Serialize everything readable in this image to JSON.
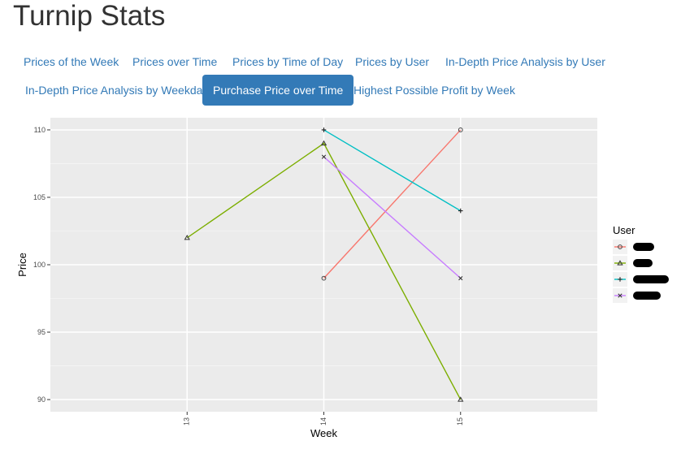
{
  "page": {
    "title": "Turnip Stats"
  },
  "tabs": [
    {
      "label": "Prices of the Week",
      "active": false
    },
    {
      "label": "Prices over Time",
      "active": false
    },
    {
      "label": "Prices by Time of Day",
      "active": false
    },
    {
      "label": "Prices by User",
      "active": false
    },
    {
      "label": "In-Depth Price Analysis by User",
      "active": false
    },
    {
      "label": "In-Depth Price Analysis by Weekday",
      "active": false
    },
    {
      "label": "Purchase Price over Time",
      "active": true
    },
    {
      "label": "Highest Possible Profit by Week",
      "active": false
    }
  ],
  "chart_data": {
    "type": "line",
    "xlabel": "Week",
    "ylabel": "Price",
    "categories": [
      "13",
      "14",
      "15"
    ],
    "ylim": [
      89.1,
      110.9
    ],
    "yticks": [
      90,
      95,
      100,
      105,
      110
    ],
    "grid": true,
    "legend": {
      "title": "User",
      "placement": "right"
    },
    "series": [
      {
        "values": [
          null,
          99,
          110
        ],
        "color": "#F8766D",
        "marker": "circle"
      },
      {
        "values": [
          102,
          109,
          90
        ],
        "color": "#7CAE00",
        "marker": "triangle"
      },
      {
        "values": [
          null,
          110,
          104
        ],
        "color": "#00BFC4",
        "marker": "plus"
      },
      {
        "values": [
          null,
          108,
          99
        ],
        "color": "#C77CFF",
        "marker": "cross"
      }
    ]
  }
}
